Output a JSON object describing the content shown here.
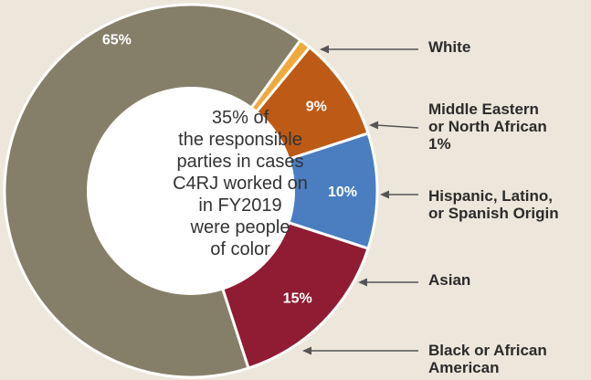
{
  "chart_data": {
    "type": "pie",
    "style": "donut",
    "center_text": [
      "35% of",
      "the responsible",
      "parties in cases",
      "C4RJ worked on",
      "in FY2019",
      "were people",
      "of color"
    ],
    "slices": [
      {
        "label": "White",
        "label_lines": [
          "White"
        ],
        "value": 65,
        "value_label": "65%",
        "color": "#857f69"
      },
      {
        "label": "Middle Eastern or North African",
        "label_lines": [
          "Middle Eastern",
          "or North African",
          "1%"
        ],
        "value": 1,
        "value_label": "",
        "color": "#f0a93b"
      },
      {
        "label": "Hispanic, Latino, or Spanish Origin",
        "label_lines": [
          "Hispanic, Latino,",
          "or Spanish Origin"
        ],
        "value": 9,
        "value_label": "9%",
        "color": "#bd5a15"
      },
      {
        "label": "Asian",
        "label_lines": [
          "Asian"
        ],
        "value": 10,
        "value_label": "10%",
        "color": "#4a7ec0"
      },
      {
        "label": "Black or African American",
        "label_lines": [
          "Black or African",
          "American"
        ],
        "value": 15,
        "value_label": "15%",
        "color": "#8f1c32"
      }
    ],
    "legend": "right"
  },
  "colors": {
    "background": "#ece7da",
    "slice_separator": "#ffffff",
    "center_fill": "#ffffff",
    "arrow": "#555555"
  }
}
